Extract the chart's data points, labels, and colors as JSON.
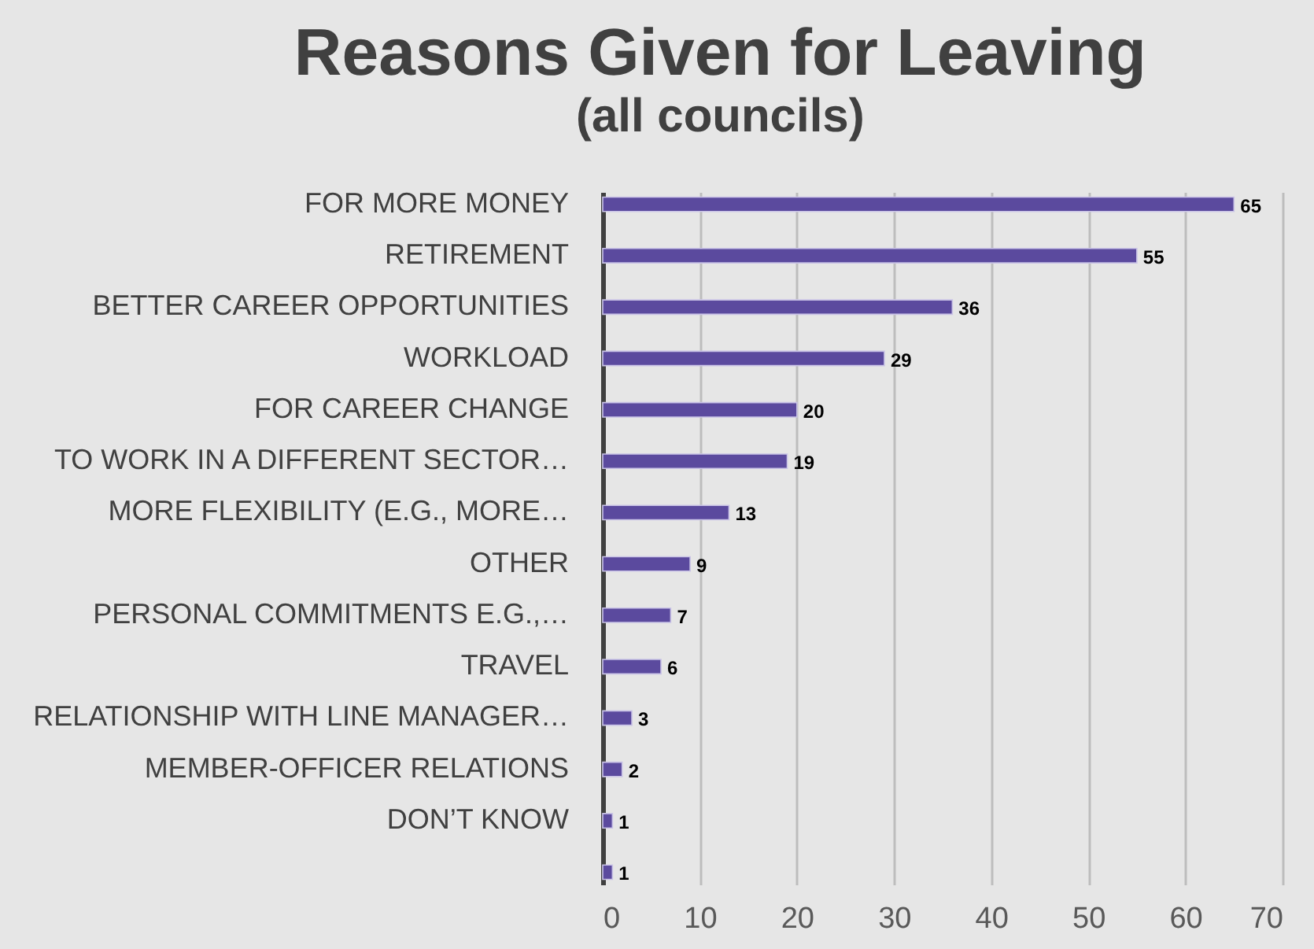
{
  "chart_data": {
    "type": "bar",
    "orientation": "horizontal",
    "title": "Reasons Given for Leaving",
    "subtitle": "(all councils)",
    "categories": [
      "FOR MORE MONEY",
      "RETIREMENT",
      "BETTER CAREER OPPORTUNITIES",
      "WORKLOAD",
      "FOR CAREER CHANGE",
      "TO WORK IN A DIFFERENT SECTOR…",
      "MORE FLEXIBILITY (E.G., MORE…",
      "OTHER",
      "PERSONAL COMMITMENTS E.G.,…",
      "TRAVEL",
      "RELATIONSHIP WITH LINE MANAGER…",
      "MEMBER-OFFICER RELATIONS",
      "DON’T KNOW",
      null
    ],
    "values": [
      65,
      55,
      36,
      29,
      20,
      19,
      13,
      9,
      7,
      6,
      3,
      2,
      1,
      1
    ],
    "color": "#5b4a9e",
    "xlim": [
      0,
      70
    ],
    "xticks": [
      0,
      10,
      20,
      30,
      40,
      50,
      60,
      70
    ],
    "grid": "x",
    "data_labels": true
  }
}
